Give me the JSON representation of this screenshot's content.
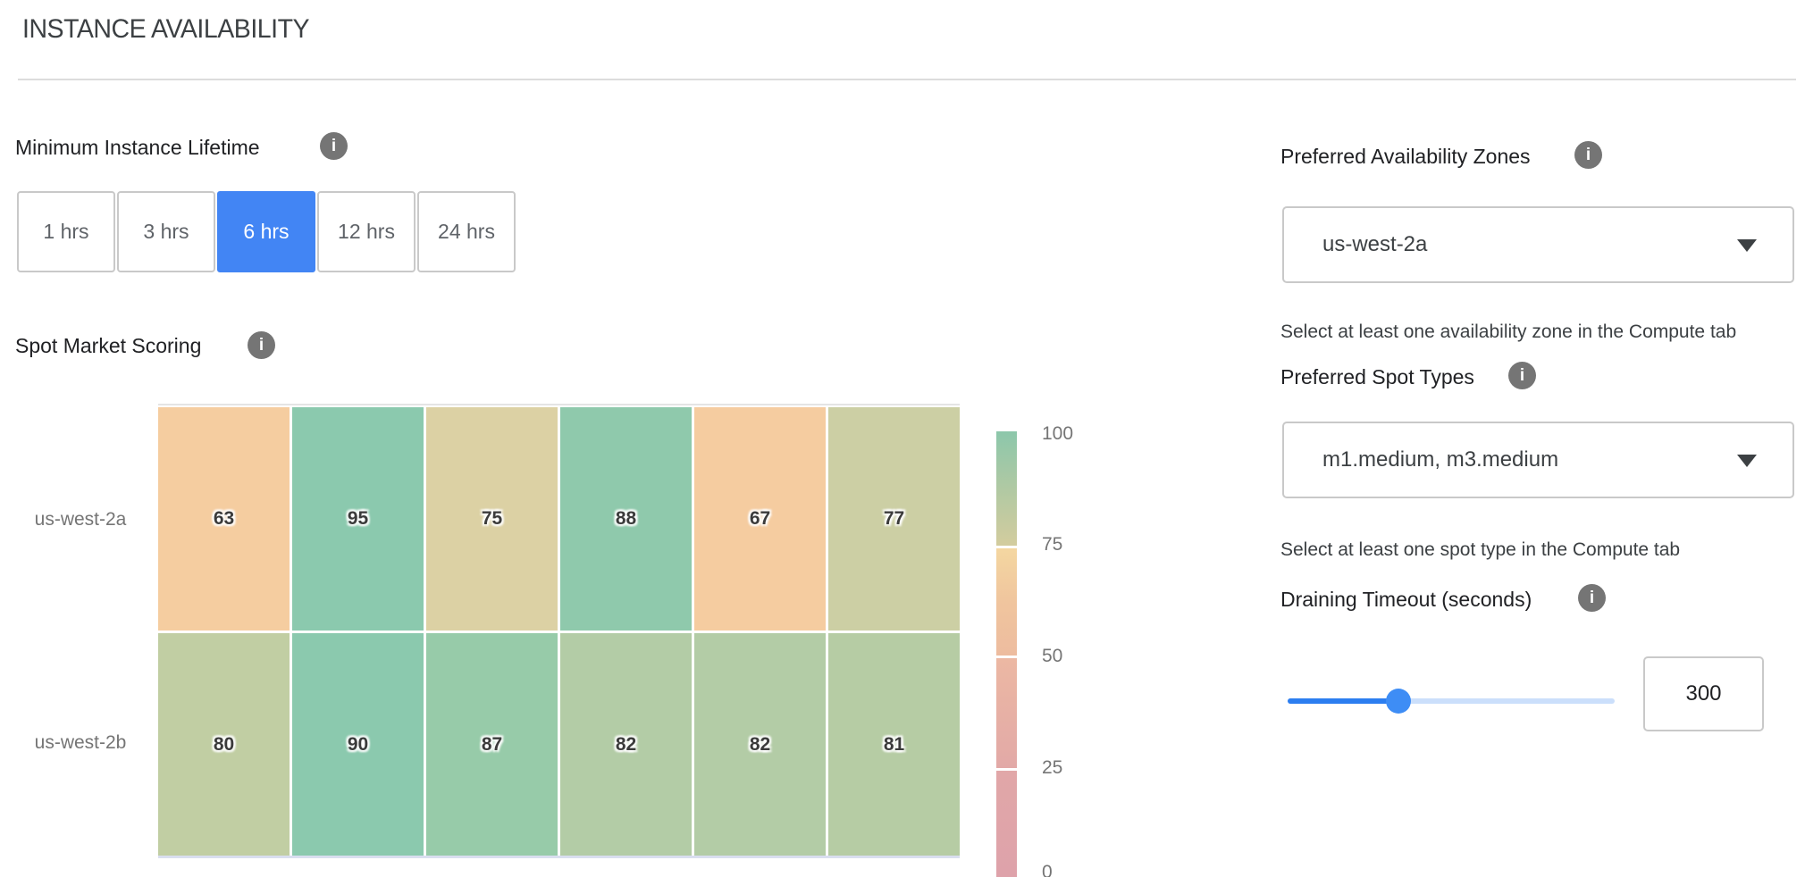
{
  "page": {
    "title": "INSTANCE AVAILABILITY"
  },
  "icons": {
    "info": "i"
  },
  "lifetime": {
    "label": "Minimum Instance Lifetime",
    "options": [
      "1 hrs",
      "3 hrs",
      "6 hrs",
      "12 hrs",
      "24 hrs"
    ],
    "selected": "6 hrs"
  },
  "scoring": {
    "label": "Spot Market Scoring"
  },
  "chart_data": {
    "type": "heatmap",
    "title": "Spot Market Scoring",
    "rows": [
      "us-west-2a",
      "us-west-2b"
    ],
    "values": [
      [
        63,
        95,
        75,
        88,
        67,
        77
      ],
      [
        80,
        90,
        87,
        82,
        82,
        81
      ]
    ],
    "cell_colors": [
      [
        "#F5CDA0",
        "#8BC9AE",
        "#DCD1A4",
        "#8FC9AC",
        "#F5CCA0",
        "#CCCFA4"
      ],
      [
        "#C1CEA3",
        "#8BC9AE",
        "#97CBA9",
        "#B3CCA6",
        "#B3CCA6",
        "#B6CCA4"
      ]
    ],
    "colorbar": {
      "min": 0,
      "max": 100,
      "ticks": [
        "100",
        "75",
        "50",
        "25",
        "0"
      ],
      "segment_colors": [
        [
          "#8CC7AB",
          "#B0C9A3",
          "#D3CC9E"
        ],
        [
          "#F4D7A1",
          "#F0C59E",
          "#EDBC9F"
        ],
        [
          "#ECB8A3",
          "#E2A9A7"
        ],
        [
          "#E1A7A8",
          "#DEA2AA"
        ]
      ]
    },
    "legend_position": "right",
    "grid": false
  },
  "zones": {
    "label": "Preferred Availability Zones",
    "value": "us-west-2a",
    "helper": "Select at least one availability zone in the Compute tab"
  },
  "spot_types": {
    "label": "Preferred Spot Types",
    "value": "m1.medium, m3.medium",
    "helper": "Select at least one spot type in the Compute tab"
  },
  "draining": {
    "label": "Draining Timeout (seconds)",
    "value": "300",
    "slider_percent": 34
  },
  "colors": {
    "accent": "#4285F4",
    "slider_fill": "#2C7EF0",
    "slider_track": "#CBDFFB",
    "info_icon": "#757575"
  }
}
